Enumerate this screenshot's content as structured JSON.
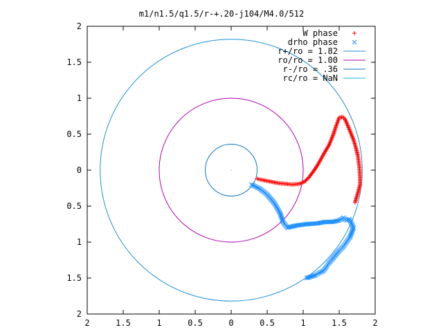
{
  "chart_data": {
    "type": "scatter",
    "title": "m1/n1.5/q1.5/r-+.20-j104/M4.0/512",
    "xlabel": "",
    "ylabel": "",
    "xlim": [
      -2,
      2
    ],
    "ylim": [
      -2,
      2
    ],
    "x_ticks": [
      -2,
      -1.5,
      -1,
      -0.5,
      0,
      0.5,
      1,
      1.5,
      2
    ],
    "y_ticks": [
      -2,
      -1.5,
      -1,
      -0.5,
      0,
      0.5,
      1,
      1.5,
      2
    ],
    "x_tick_labels": [
      "2",
      "1.5",
      "1",
      "0.5",
      "0",
      "0.5",
      "1",
      "1.5",
      "2"
    ],
    "y_tick_labels": [
      "2",
      "1.5",
      "1",
      "0.5",
      "0",
      "0.5",
      "1",
      "1.5",
      "2"
    ],
    "grid": false,
    "legend_position": "top-right",
    "legend": [
      {
        "label": "W phase",
        "kind": "points",
        "marker": "plus",
        "color": "#ff0000"
      },
      {
        "label": "drho phase",
        "kind": "points",
        "marker": "cross",
        "color": "#1e90ff"
      },
      {
        "label": "r+/ro = 1.82",
        "kind": "line",
        "color": "#1a8fd6"
      },
      {
        "label": "ro/ro = 1.00",
        "kind": "line",
        "color": "#b000b0"
      },
      {
        "label": "r-/ro = .36",
        "kind": "line",
        "color": "#0d74c6"
      },
      {
        "label": "rc/ro = NaN",
        "kind": "line",
        "color": "#19b8d6"
      }
    ],
    "circles": [
      {
        "name": "r+/ro",
        "r": 1.82,
        "color": "#1a8fd6"
      },
      {
        "name": "ro/ro",
        "r": 1.0,
        "color": "#b000b0"
      },
      {
        "name": "r-/ro",
        "r": 0.36,
        "color": "#0d74c6"
      }
    ],
    "series": [
      {
        "name": "W phase",
        "marker": "plus",
        "color": "#ff0000",
        "points": [
          [
            0.36,
            -0.12
          ],
          [
            0.45,
            -0.14
          ],
          [
            0.55,
            -0.16
          ],
          [
            0.65,
            -0.18
          ],
          [
            0.75,
            -0.19
          ],
          [
            0.85,
            -0.2
          ],
          [
            0.95,
            -0.19
          ],
          [
            1.02,
            -0.16
          ],
          [
            1.08,
            -0.1
          ],
          [
            1.14,
            -0.02
          ],
          [
            1.2,
            0.07
          ],
          [
            1.25,
            0.16
          ],
          [
            1.3,
            0.25
          ],
          [
            1.36,
            0.35
          ],
          [
            1.42,
            0.5
          ],
          [
            1.46,
            0.62
          ],
          [
            1.5,
            0.73
          ],
          [
            1.55,
            0.74
          ],
          [
            1.58,
            0.71
          ],
          [
            1.62,
            0.62
          ],
          [
            1.66,
            0.52
          ],
          [
            1.7,
            0.42
          ],
          [
            1.73,
            0.32
          ],
          [
            1.76,
            0.2
          ],
          [
            1.78,
            0.05
          ],
          [
            1.79,
            -0.1
          ],
          [
            1.79,
            -0.2
          ],
          [
            1.77,
            -0.28
          ],
          [
            1.72,
            -0.45
          ]
        ]
      },
      {
        "name": "drho phase",
        "marker": "cross",
        "color": "#1e90ff",
        "points": [
          [
            0.28,
            -0.2
          ],
          [
            0.4,
            -0.26
          ],
          [
            0.5,
            -0.34
          ],
          [
            0.6,
            -0.46
          ],
          [
            0.68,
            -0.6
          ],
          [
            0.72,
            -0.72
          ],
          [
            0.78,
            -0.8
          ],
          [
            0.9,
            -0.77
          ],
          [
            1.05,
            -0.75
          ],
          [
            1.2,
            -0.74
          ],
          [
            1.3,
            -0.72
          ],
          [
            1.4,
            -0.72
          ],
          [
            1.5,
            -0.7
          ],
          [
            1.56,
            -0.66
          ],
          [
            1.6,
            -0.7
          ],
          [
            1.64,
            -0.68
          ],
          [
            1.7,
            -0.8
          ],
          [
            1.65,
            -0.93
          ],
          [
            1.6,
            -1.0
          ],
          [
            1.56,
            -1.06
          ],
          [
            1.5,
            -1.12
          ],
          [
            1.45,
            -1.18
          ],
          [
            1.4,
            -1.24
          ],
          [
            1.35,
            -1.3
          ],
          [
            1.32,
            -1.35
          ],
          [
            1.28,
            -1.4
          ],
          [
            1.22,
            -1.43
          ],
          [
            1.17,
            -1.46
          ],
          [
            1.05,
            -1.5
          ]
        ]
      }
    ]
  }
}
